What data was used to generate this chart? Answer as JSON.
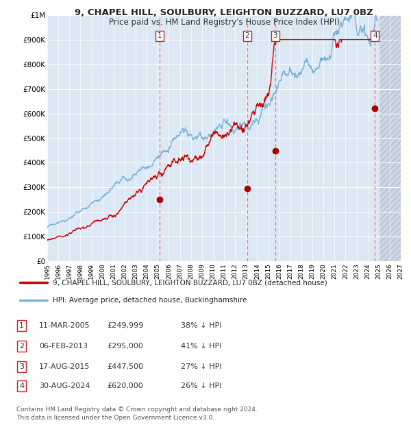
{
  "title1": "9, CHAPEL HILL, SOULBURY, LEIGHTON BUZZARD, LU7 0BZ",
  "title2": "Price paid vs. HM Land Registry's House Price Index (HPI)",
  "background_color": "#dce9f5",
  "grid_color": "#ffffff",
  "hpi_color": "#7ab3d8",
  "price_color": "#cc0000",
  "sale_marker_color": "#aa0000",
  "vline_color": "#ff6666",
  "ylim": [
    0,
    1000000
  ],
  "yticks": [
    0,
    100000,
    200000,
    300000,
    400000,
    500000,
    600000,
    700000,
    800000,
    900000,
    1000000
  ],
  "ytick_labels": [
    "£0",
    "£100K",
    "£200K",
    "£300K",
    "£400K",
    "£500K",
    "£600K",
    "£700K",
    "£800K",
    "£900K",
    "£1M"
  ],
  "xmin": 1995.0,
  "xmax": 2027.0,
  "sale_dates": [
    2005.19,
    2013.09,
    2015.63,
    2024.66
  ],
  "sale_prices": [
    249999,
    295000,
    447500,
    620000
  ],
  "sale_labels": [
    "1",
    "2",
    "3",
    "4"
  ],
  "legend_house_label": "9, CHAPEL HILL, SOULBURY, LEIGHTON BUZZARD, LU7 0BZ (detached house)",
  "legend_hpi_label": "HPI: Average price, detached house, Buckinghamshire",
  "table_rows": [
    [
      "1",
      "11-MAR-2005",
      "£249,999",
      "38% ↓ HPI"
    ],
    [
      "2",
      "06-FEB-2013",
      "£295,000",
      "41% ↓ HPI"
    ],
    [
      "3",
      "17-AUG-2015",
      "£447,500",
      "27% ↓ HPI"
    ],
    [
      "4",
      "30-AUG-2024",
      "£620,000",
      "26% ↓ HPI"
    ]
  ],
  "footer": "Contains HM Land Registry data © Crown copyright and database right 2024.\nThis data is licensed under the Open Government Licence v3.0.",
  "future_start": 2025.0
}
